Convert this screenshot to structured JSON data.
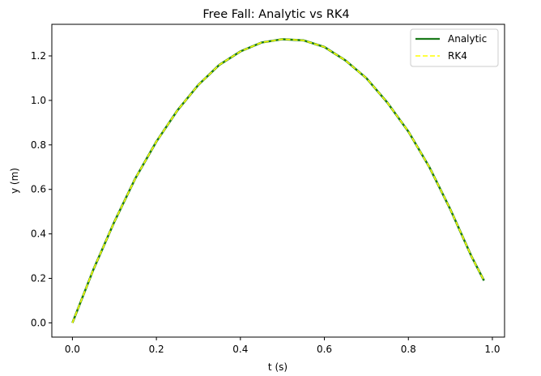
{
  "chart_data": {
    "type": "line",
    "title": "Free Fall: Analytic vs RK4",
    "xlabel": "t (s)",
    "ylabel": "y (m)",
    "xlim": [
      -0.049,
      1.029
    ],
    "ylim": [
      -0.064,
      1.342
    ],
    "xticks": [
      0.0,
      0.2,
      0.4,
      0.6,
      0.8,
      1.0
    ],
    "xtick_labels": [
      "0.0",
      "0.2",
      "0.4",
      "0.6",
      "0.8",
      "1.0"
    ],
    "yticks": [
      0.0,
      0.2,
      0.4,
      0.6,
      0.8,
      1.0,
      1.2
    ],
    "ytick_labels": [
      "0.0",
      "0.2",
      "0.4",
      "0.6",
      "0.8",
      "1.0",
      "1.2"
    ],
    "grid": false,
    "legend_position": "top-right",
    "series": [
      {
        "name": "Analytic",
        "color": "#1a7a1a",
        "style": "solid",
        "x": [
          0.0,
          0.05,
          0.1,
          0.15,
          0.2,
          0.25,
          0.3,
          0.35,
          0.4,
          0.45,
          0.5,
          0.55,
          0.6,
          0.65,
          0.7,
          0.75,
          0.8,
          0.85,
          0.9,
          0.95,
          0.98
        ],
        "y": [
          0.0,
          0.24,
          0.455,
          0.65,
          0.815,
          0.955,
          1.07,
          1.16,
          1.22,
          1.26,
          1.275,
          1.27,
          1.24,
          1.18,
          1.1,
          0.99,
          0.86,
          0.7,
          0.51,
          0.3,
          0.19
        ]
      },
      {
        "name": "RK4",
        "color": "#ffff00",
        "style": "dashed",
        "x": [
          0.0,
          0.05,
          0.1,
          0.15,
          0.2,
          0.25,
          0.3,
          0.35,
          0.4,
          0.45,
          0.5,
          0.55,
          0.6,
          0.65,
          0.7,
          0.75,
          0.8,
          0.85,
          0.9,
          0.95,
          0.98
        ],
        "y": [
          0.0,
          0.24,
          0.455,
          0.65,
          0.815,
          0.955,
          1.07,
          1.16,
          1.22,
          1.26,
          1.275,
          1.27,
          1.24,
          1.18,
          1.1,
          0.99,
          0.86,
          0.7,
          0.51,
          0.3,
          0.19
        ]
      }
    ]
  }
}
